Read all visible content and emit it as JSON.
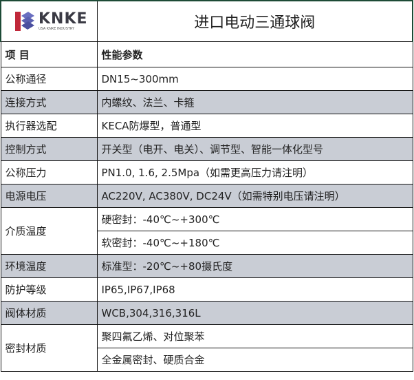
{
  "logo": {
    "text": "KNKE",
    "subtext": "USA KNKE INDUSTRY"
  },
  "title": "进口电动三通球阀",
  "header": {
    "item": "项 目",
    "spec": "性能参数"
  },
  "rows": [
    {
      "label": "公称通径",
      "value": "DN15~300mm",
      "gray": false
    },
    {
      "label": "连接方式",
      "value": "内螺纹、法兰、卡箍",
      "gray": true
    },
    {
      "label": "执行器选配",
      "value": "KECA防爆型，普通型",
      "gray": false
    },
    {
      "label": "控制方式",
      "value": "开关型（电开、电关）、调节型、智能一体化型号",
      "gray": true
    },
    {
      "label": "公称压力",
      "value": "PN1.0, 1.6, 2.5Mpa（如需更高压力请注明）",
      "gray": false
    },
    {
      "label": "电源电压",
      "value": "AC220V, AC380V, DC24V（如需特别电压请注明）",
      "gray": true
    }
  ],
  "medium_temp": {
    "label": "介质温度",
    "values": [
      "硬密封：-40℃~+300℃",
      "软密封：-40℃~+180℃"
    ]
  },
  "rows2": [
    {
      "label": "环境温度",
      "value": "标准型：-20℃~+80摄氏度"
    },
    {
      "label": "防护等级",
      "value": "IP65,IP67,IP68"
    },
    {
      "label": "阀体材质",
      "value": "WCB,304,316,316L"
    }
  ],
  "seal": {
    "label": "密封材质",
    "values": [
      "聚四氟乙烯、对位聚苯",
      "全金属密封、硬质合金"
    ]
  }
}
